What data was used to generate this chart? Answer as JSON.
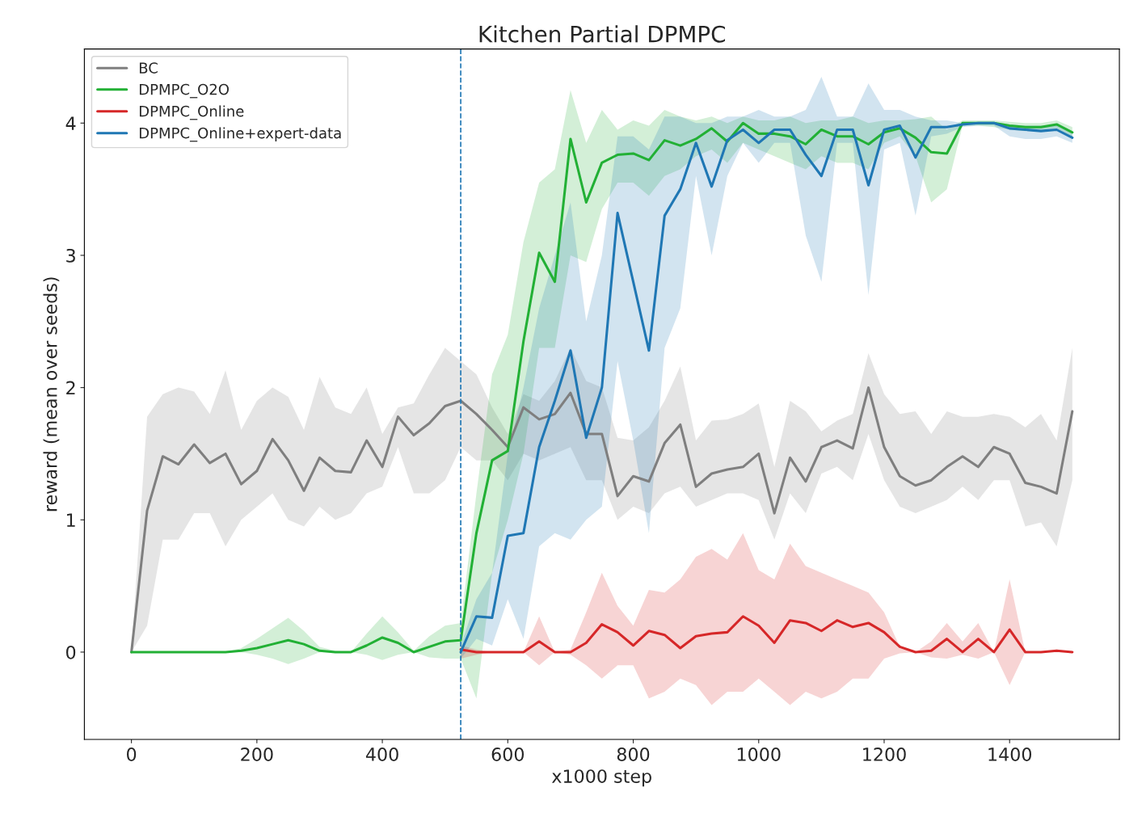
{
  "chart_data": {
    "type": "line",
    "title": "Kitchen Partial DPMPC",
    "xlabel": "x1000 step",
    "ylabel": "reward (mean over seeds)",
    "x": [
      0,
      25,
      50,
      75,
      100,
      125,
      150,
      175,
      200,
      225,
      250,
      275,
      300,
      325,
      350,
      375,
      400,
      425,
      450,
      475,
      500,
      525,
      550,
      575,
      600,
      625,
      650,
      675,
      700,
      725,
      750,
      775,
      800,
      825,
      850,
      875,
      900,
      925,
      950,
      975,
      1000,
      1025,
      1050,
      1075,
      1100,
      1125,
      1150,
      1175,
      1200,
      1225,
      1250,
      1275,
      1300,
      1325,
      1350,
      1375,
      1400,
      1425,
      1450,
      1475,
      1500
    ],
    "series": [
      {
        "name": "BC",
        "color": "#7f7f7f",
        "values": [
          0,
          1.07,
          1.48,
          1.42,
          1.57,
          1.43,
          1.5,
          1.27,
          1.37,
          1.61,
          1.45,
          1.22,
          1.47,
          1.37,
          1.36,
          1.6,
          1.4,
          1.78,
          1.64,
          1.73,
          1.86,
          1.9,
          1.8,
          1.68,
          1.55,
          1.85,
          1.76,
          1.8,
          1.96,
          1.65,
          1.65,
          1.18,
          1.33,
          1.29,
          1.58,
          1.72,
          1.25,
          1.35,
          1.38,
          1.4,
          1.5,
          1.05,
          1.47,
          1.29,
          1.55,
          1.6,
          1.54,
          2.0,
          1.55,
          1.33,
          1.26,
          1.3,
          1.4,
          1.48,
          1.4,
          1.55,
          1.5,
          1.28,
          1.25,
          1.2,
          1.82
        ],
        "lower": [
          0,
          0.2,
          0.85,
          0.85,
          1.05,
          1.05,
          0.8,
          1.0,
          1.1,
          1.2,
          1.0,
          0.95,
          1.1,
          1.0,
          1.05,
          1.2,
          1.25,
          1.55,
          1.2,
          1.2,
          1.3,
          1.55,
          1.45,
          1.45,
          1.3,
          1.5,
          1.45,
          1.5,
          1.55,
          1.3,
          1.3,
          1.0,
          1.1,
          1.05,
          1.2,
          1.25,
          1.1,
          1.15,
          1.2,
          1.2,
          1.15,
          0.85,
          1.2,
          1.05,
          1.35,
          1.4,
          1.3,
          1.65,
          1.3,
          1.1,
          1.05,
          1.1,
          1.15,
          1.25,
          1.15,
          1.3,
          1.3,
          0.95,
          0.98,
          0.8,
          1.3
        ],
        "upper": [
          0,
          1.78,
          1.95,
          2.0,
          1.97,
          1.8,
          2.13,
          1.68,
          1.9,
          2.0,
          1.93,
          1.68,
          2.08,
          1.85,
          1.8,
          2.0,
          1.65,
          1.85,
          1.88,
          2.1,
          2.3,
          2.2,
          2.1,
          1.85,
          1.65,
          1.95,
          1.9,
          2.05,
          2.3,
          2.05,
          2.0,
          1.62,
          1.6,
          1.7,
          1.9,
          2.16,
          1.6,
          1.75,
          1.76,
          1.8,
          1.88,
          1.4,
          1.9,
          1.82,
          1.67,
          1.75,
          1.8,
          2.26,
          1.95,
          1.8,
          1.82,
          1.65,
          1.82,
          1.78,
          1.78,
          1.8,
          1.78,
          1.7,
          1.8,
          1.6,
          2.3
        ]
      },
      {
        "name": "DPMPC_O2O",
        "color": "#22b035",
        "values": [
          0,
          0,
          0,
          0,
          0,
          0,
          0,
          0.01,
          0.03,
          0.06,
          0.09,
          0.06,
          0.01,
          0,
          0,
          0.05,
          0.11,
          0.07,
          0,
          0.04,
          0.08,
          0.09,
          0.9,
          1.45,
          1.52,
          2.35,
          3.02,
          2.8,
          3.88,
          3.4,
          3.7,
          3.76,
          3.77,
          3.72,
          3.87,
          3.83,
          3.88,
          3.96,
          3.86,
          4.0,
          3.92,
          3.92,
          3.9,
          3.84,
          3.95,
          3.9,
          3.9,
          3.84,
          3.93,
          3.96,
          3.89,
          3.78,
          3.77,
          4.0,
          4.0,
          4.0,
          3.98,
          3.97,
          3.97,
          3.99,
          3.93
        ],
        "lower": [
          0,
          0,
          0,
          0,
          0,
          0,
          0,
          0,
          -0.02,
          -0.05,
          -0.09,
          -0.05,
          0,
          0,
          0,
          -0.02,
          -0.06,
          -0.02,
          0,
          -0.04,
          -0.05,
          -0.05,
          -0.35,
          0.6,
          1.0,
          1.5,
          2.3,
          2.3,
          3.0,
          2.95,
          3.35,
          3.55,
          3.55,
          3.45,
          3.6,
          3.65,
          3.75,
          3.8,
          3.7,
          3.85,
          3.8,
          3.75,
          3.7,
          3.65,
          3.75,
          3.7,
          3.7,
          3.65,
          3.85,
          3.9,
          3.75,
          3.4,
          3.5,
          3.98,
          3.98,
          3.97,
          3.95,
          3.94,
          3.95,
          3.96,
          3.9
        ],
        "upper": [
          0,
          0,
          0,
          0,
          0,
          0,
          0,
          0.03,
          0.1,
          0.18,
          0.26,
          0.16,
          0.04,
          0.01,
          0,
          0.14,
          0.27,
          0.15,
          0.01,
          0.12,
          0.2,
          0.22,
          1.2,
          2.1,
          2.4,
          3.1,
          3.55,
          3.65,
          4.25,
          3.85,
          4.1,
          3.95,
          4.02,
          3.98,
          4.1,
          4.05,
          4.02,
          4.05,
          4.0,
          4.05,
          4.02,
          4.02,
          4.05,
          4.0,
          4.02,
          4.02,
          4.05,
          4.0,
          4.02,
          4.02,
          4.03,
          4.05,
          3.95,
          4.02,
          4.02,
          4.02,
          4.01,
          4.0,
          4.0,
          4.02,
          3.97
        ]
      },
      {
        "name": "DPMPC_Online",
        "color": "#d62728",
        "x": [
          525,
          550,
          575,
          600,
          625,
          650,
          675,
          700,
          725,
          750,
          775,
          800,
          825,
          850,
          875,
          900,
          925,
          950,
          975,
          1000,
          1025,
          1050,
          1075,
          1100,
          1125,
          1150,
          1175,
          1200,
          1225,
          1250,
          1275,
          1300,
          1325,
          1350,
          1375,
          1400,
          1425,
          1450,
          1475,
          1500
        ],
        "values": [
          0.02,
          0,
          0,
          0,
          0,
          0.08,
          0,
          0,
          0.07,
          0.21,
          0.15,
          0.05,
          0.16,
          0.13,
          0.03,
          0.12,
          0.14,
          0.15,
          0.27,
          0.2,
          0.07,
          0.24,
          0.22,
          0.16,
          0.24,
          0.19,
          0.22,
          0.15,
          0.04,
          0,
          0.01,
          0.1,
          0,
          0.1,
          0,
          0.17,
          0,
          0,
          0.01,
          0
        ],
        "lower": [
          -0.05,
          -0.02,
          0,
          0,
          0,
          -0.1,
          0,
          -0.02,
          -0.1,
          -0.2,
          -0.1,
          -0.1,
          -0.35,
          -0.3,
          -0.2,
          -0.25,
          -0.4,
          -0.3,
          -0.3,
          -0.2,
          -0.3,
          -0.4,
          -0.3,
          -0.35,
          -0.3,
          -0.2,
          -0.2,
          -0.05,
          -0.01,
          0,
          -0.04,
          -0.05,
          -0.02,
          -0.05,
          0,
          -0.25,
          0,
          0,
          0,
          0
        ],
        "upper": [
          0.05,
          0.02,
          0,
          0,
          0,
          0.27,
          0,
          0.02,
          0.3,
          0.6,
          0.35,
          0.2,
          0.47,
          0.45,
          0.55,
          0.72,
          0.78,
          0.7,
          0.9,
          0.62,
          0.55,
          0.82,
          0.65,
          0.6,
          0.55,
          0.5,
          0.45,
          0.3,
          0.04,
          0,
          0.08,
          0.22,
          0.08,
          0.22,
          0,
          0.55,
          0,
          0,
          0.02,
          0
        ]
      },
      {
        "name": "DPMPC_Online+expert-data",
        "color": "#1f77b4",
        "x": [
          525,
          550,
          575,
          600,
          625,
          650,
          675,
          700,
          725,
          750,
          775,
          800,
          825,
          850,
          875,
          900,
          925,
          950,
          975,
          1000,
          1025,
          1050,
          1075,
          1100,
          1125,
          1150,
          1175,
          1200,
          1225,
          1250,
          1275,
          1300,
          1325,
          1350,
          1375,
          1400,
          1425,
          1450,
          1475,
          1500
        ],
        "values": [
          0,
          0.27,
          0.26,
          0.88,
          0.9,
          1.55,
          1.9,
          2.28,
          1.62,
          2.0,
          3.32,
          2.8,
          2.28,
          3.3,
          3.5,
          3.85,
          3.52,
          3.87,
          3.95,
          3.85,
          3.95,
          3.95,
          3.76,
          3.6,
          3.95,
          3.95,
          3.53,
          3.95,
          3.98,
          3.74,
          3.97,
          3.97,
          3.99,
          4.0,
          4.0,
          3.96,
          3.95,
          3.94,
          3.95,
          3.89
        ],
        "lower": [
          -0.05,
          0.1,
          0.05,
          0.4,
          0.1,
          0.8,
          0.9,
          0.85,
          1.0,
          1.1,
          2.2,
          1.6,
          0.9,
          2.3,
          2.6,
          3.6,
          3.0,
          3.6,
          3.85,
          3.7,
          3.85,
          3.85,
          3.15,
          2.8,
          3.85,
          3.85,
          2.7,
          3.8,
          3.85,
          3.3,
          3.9,
          3.92,
          3.97,
          3.98,
          3.98,
          3.9,
          3.88,
          3.88,
          3.9,
          3.85
        ],
        "upper": [
          0.05,
          0.4,
          0.6,
          1.5,
          2.0,
          2.6,
          3.0,
          3.4,
          2.5,
          3.0,
          3.9,
          3.9,
          3.8,
          4.05,
          4.05,
          4.0,
          4.0,
          4.05,
          4.05,
          4.1,
          4.05,
          4.05,
          4.1,
          4.35,
          4.05,
          4.05,
          4.3,
          4.1,
          4.1,
          4.05,
          4.02,
          4.02,
          4.0,
          4.0,
          4.0,
          3.99,
          3.98,
          3.98,
          3.98,
          3.92
        ]
      }
    ],
    "ref_lines": [
      {
        "axis": "x",
        "value": 525,
        "color": "#1f77b4",
        "line_style": "dashed"
      }
    ],
    "xlim": [
      -75,
      1575
    ],
    "ylim": [
      -0.66,
      4.56
    ],
    "xticks": [
      0,
      200,
      400,
      600,
      800,
      1000,
      1200,
      1400
    ],
    "yticks": [
      0,
      1,
      2,
      3,
      4
    ],
    "legend": "top left",
    "grid": false,
    "line_style": "solid",
    "marker": "none"
  }
}
